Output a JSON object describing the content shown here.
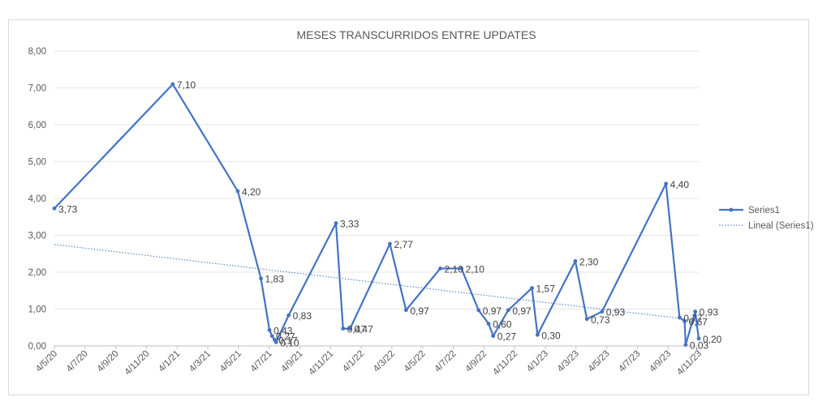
{
  "chart_data": {
    "type": "line",
    "title": "MESES TRANSCURRIDOS ENTRE UPDATES",
    "xlabel": "",
    "ylabel": "",
    "ylim": [
      0,
      8
    ],
    "y_ticks": [
      "0,00",
      "1,00",
      "2,00",
      "3,00",
      "4,00",
      "5,00",
      "6,00",
      "7,00",
      "8,00"
    ],
    "x_tick_labels": [
      "4/5/20",
      "4/7/20",
      "4/9/20",
      "4/11/20",
      "4/1/21",
      "4/3/21",
      "4/5/21",
      "4/7/21",
      "4/9/21",
      "4/11/21",
      "4/1/22",
      "4/3/22",
      "4/5/22",
      "4/7/22",
      "4/9/22",
      "4/11/22",
      "4/1/23",
      "4/3/23",
      "4/5/23",
      "4/7/23",
      "4/9/23",
      "4/11/23"
    ],
    "x_date_range": [
      "2020-05-04",
      "2023-11-04"
    ],
    "grid": true,
    "legend_position": "right",
    "series": [
      {
        "name": "Series1",
        "color": "#4472c4",
        "points": [
          {
            "date": "2020-05-04",
            "value": 3.73,
            "label": "3,73"
          },
          {
            "date": "2020-12-25",
            "value": 7.1,
            "label": "7,10"
          },
          {
            "date": "2021-05-03",
            "value": 4.2,
            "label": "4,20"
          },
          {
            "date": "2021-06-18",
            "value": 1.83,
            "label": "1,83"
          },
          {
            "date": "2021-07-05",
            "value": 0.43,
            "label": "0,43"
          },
          {
            "date": "2021-07-10",
            "value": 0.27,
            "label": "0,27"
          },
          {
            "date": "2021-07-15",
            "value": 0.17,
            "label": "0,17"
          },
          {
            "date": "2021-07-18",
            "value": 0.1,
            "label": "0,10"
          },
          {
            "date": "2021-08-12",
            "value": 0.83,
            "label": "0,83"
          },
          {
            "date": "2021-11-14",
            "value": 3.33,
            "label": "3,33"
          },
          {
            "date": "2021-11-28",
            "value": 0.47,
            "label": "0,47"
          },
          {
            "date": "2021-12-12",
            "value": 0.47,
            "label": "0,47"
          },
          {
            "date": "2022-03-01",
            "value": 2.77,
            "label": "2,77"
          },
          {
            "date": "2022-04-02",
            "value": 0.97,
            "label": "0,97"
          },
          {
            "date": "2022-06-09",
            "value": 2.1,
            "label": "2,10"
          },
          {
            "date": "2022-07-21",
            "value": 2.1,
            "label": "2,10"
          },
          {
            "date": "2022-08-24",
            "value": 0.97,
            "label": "0,97"
          },
          {
            "date": "2022-09-13",
            "value": 0.6,
            "label": "0,60"
          },
          {
            "date": "2022-09-22",
            "value": 0.27,
            "label": "0,27"
          },
          {
            "date": "2022-10-22",
            "value": 0.97,
            "label": "0,97"
          },
          {
            "date": "2022-12-08",
            "value": 1.57,
            "label": "1,57"
          },
          {
            "date": "2022-12-19",
            "value": 0.3,
            "label": "0,30"
          },
          {
            "date": "2023-03-04",
            "value": 2.3,
            "label": "2,30"
          },
          {
            "date": "2023-03-27",
            "value": 0.73,
            "label": "0,73"
          },
          {
            "date": "2023-04-26",
            "value": 0.93,
            "label": "0,93"
          },
          {
            "date": "2023-08-31",
            "value": 4.4,
            "label": "4,40"
          },
          {
            "date": "2023-09-27",
            "value": 0.77,
            "label": "0,77"
          },
          {
            "date": "2023-10-07",
            "value": 0.67,
            "label": "0,67"
          },
          {
            "date": "2023-10-09",
            "value": 0.03,
            "label": "0,03"
          },
          {
            "date": "2023-10-28",
            "value": 0.93,
            "label": "0,93"
          },
          {
            "date": "2023-11-04",
            "value": 0.2,
            "label": "0,20"
          }
        ]
      }
    ],
    "trendline": {
      "name": "Lineal (Series1)",
      "type": "linear",
      "color": "#4472c4",
      "style": "dotted",
      "start": {
        "date": "2020-05-04",
        "value": 2.75
      },
      "end": {
        "date": "2023-10-28",
        "value": 0.7
      }
    }
  }
}
